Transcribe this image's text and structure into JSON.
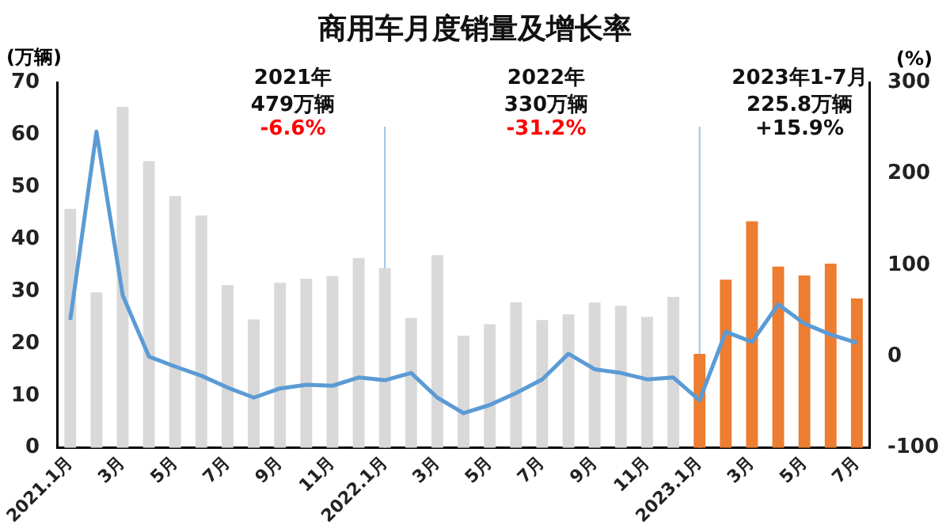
{
  "chart_data": {
    "type": "bar",
    "title": "商用车月度销量及增长率",
    "ylabel": "(万辆)",
    "y2label": "(%)",
    "categories": [
      "2021.1月",
      null,
      "3月",
      null,
      "5月",
      null,
      "7月",
      null,
      "9月",
      null,
      "11月",
      null,
      "2022.1月",
      null,
      "3月",
      null,
      "5月",
      null,
      "7月",
      null,
      "9月",
      null,
      "11月",
      null,
      "2023.1月",
      null,
      "3月",
      null,
      "5月",
      null,
      "7月"
    ],
    "series": [
      {
        "colors": [
          "#d9d9d9",
          "#d9d9d9",
          "#d9d9d9",
          "#d9d9d9",
          "#d9d9d9",
          "#d9d9d9",
          "#d9d9d9",
          "#d9d9d9",
          "#d9d9d9",
          "#d9d9d9",
          "#d9d9d9",
          "#d9d9d9",
          "#d9d9d9",
          "#d9d9d9",
          "#d9d9d9",
          "#d9d9d9",
          "#d9d9d9",
          "#d9d9d9",
          "#d9d9d9",
          "#d9d9d9",
          "#d9d9d9",
          "#d9d9d9",
          "#d9d9d9",
          "#d9d9d9",
          "#ed7d31",
          "#ed7d31",
          "#ed7d31",
          "#ed7d31",
          "#ed7d31",
          "#ed7d31",
          "#ed7d31"
        ],
        "values": [
          45.8,
          29.8,
          65.3,
          54.9,
          48.2,
          44.5,
          31.2,
          24.6,
          31.6,
          32.4,
          32.9,
          36.4,
          34.4,
          24.9,
          36.9,
          21.5,
          23.7,
          27.9,
          24.5,
          25.6,
          27.8,
          27.2,
          25.1,
          28.9,
          18.0,
          32.2,
          43.4,
          34.7,
          33.0,
          35.3,
          28.6
        ]
      },
      {
        "type": "line",
        "axis": "y2",
        "color": "#5b9bd5",
        "values": [
          40,
          246,
          67,
          0,
          -11,
          -21,
          -34,
          -45,
          -35,
          -31,
          -32,
          -23,
          -26,
          -18,
          -45,
          -62,
          -53,
          -40,
          -25,
          3,
          -14,
          -18,
          -25,
          -23,
          -48,
          27,
          16,
          57,
          36,
          24,
          15
        ]
      }
    ],
    "ylim": [
      0,
      70
    ],
    "yticks": [
      0,
      10,
      20,
      30,
      40,
      50,
      60,
      70
    ],
    "y2lim": [
      -100,
      300
    ],
    "y2ticks": [
      -100,
      0,
      100,
      200,
      300
    ],
    "ref_lines": [
      {
        "axis": "x",
        "value": "2022.1月",
        "color": "#9dc3e6"
      },
      {
        "axis": "x",
        "value": "2023.1月",
        "color": "#9dc3e6"
      }
    ],
    "annotations": [
      "2021年",
      "479万辆",
      "-6.6%",
      "2022年",
      "330万辆",
      "-31.2%",
      "2023年1-7月",
      "225.8万辆",
      "+15.9%"
    ]
  }
}
